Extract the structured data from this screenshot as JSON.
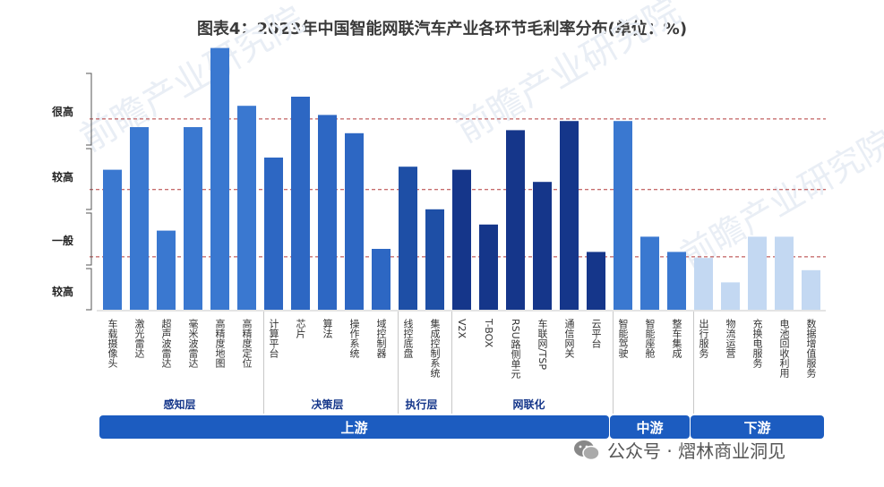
{
  "chart_data": {
    "type": "bar",
    "title": "图表4：2023年中国智能网联汽车产业各环节毛利率分布(单位：%)",
    "y_tick_labels": [
      "较高",
      "一般",
      "较高",
      "很高"
    ],
    "categories": [
      "车载摄像头",
      "激光雷达",
      "超声波雷达",
      "毫米波雷达",
      "高精度地图",
      "高精度定位",
      "计算平台",
      "芯片",
      "算法",
      "操作系统",
      "域控制器",
      "线控底盘",
      "集成控制系统",
      "V2X",
      "T-BOX",
      "RSU路侧单元",
      "车联网/TSP",
      "通信网关",
      "云平台",
      "智能驾驶",
      "智能座舱",
      "整车集成",
      "出行服务",
      "物流运营",
      "充换电服务",
      "电池回收利用",
      "数据增值服务"
    ],
    "values": [
      4.6,
      6.0,
      2.6,
      6.0,
      8.6,
      6.7,
      5.0,
      7.0,
      6.4,
      5.8,
      2.0,
      4.7,
      3.3,
      4.6,
      2.8,
      5.9,
      4.2,
      6.2,
      1.9,
      6.2,
      2.4,
      1.9,
      1.7,
      0.9,
      2.4,
      2.4,
      1.3
    ],
    "colors": [
      "#3a78d0",
      "#3a78d0",
      "#3a78d0",
      "#3a78d0",
      "#3a78d0",
      "#3a78d0",
      "#2d67c3",
      "#2d67c3",
      "#2d67c3",
      "#2d67c3",
      "#2d67c3",
      "#1e4fa6",
      "#1e4fa6",
      "#15368a",
      "#15368a",
      "#15368a",
      "#15368a",
      "#15368a",
      "#15368a",
      "#3a78d0",
      "#3a78d0",
      "#3a78d0",
      "#c3d8f2",
      "#c3d8f2",
      "#c3d8f2",
      "#c3d8f2",
      "#c3d8f2"
    ],
    "ylim": [
      0,
      9
    ],
    "grid": "dashed",
    "sub_groups": [
      {
        "label": "感知层",
        "from": 0,
        "to": 5
      },
      {
        "label": "决策层",
        "from": 6,
        "to": 10
      },
      {
        "label": "执行层",
        "from": 11,
        "to": 12
      },
      {
        "label": "网联化",
        "from": 13,
        "to": 18
      }
    ],
    "main_groups": [
      {
        "label": "上游",
        "from": 0,
        "to": 18
      },
      {
        "label": "中游",
        "from": 19,
        "to": 21
      },
      {
        "label": "下游",
        "from": 22,
        "to": 26
      }
    ]
  },
  "watermark": "前瞻产业研究院",
  "footer": "公众号 · 熠林商业洞见"
}
